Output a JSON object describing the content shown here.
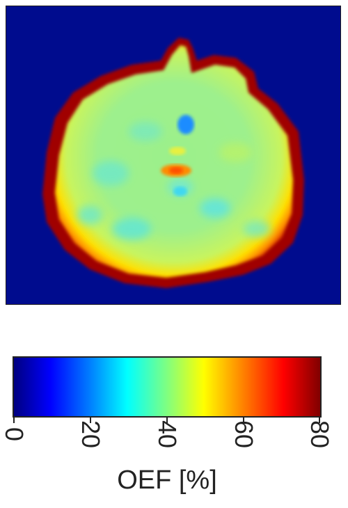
{
  "colors": {
    "background": "#000c8e",
    "colormap": [
      "#000080",
      "#0000ff",
      "#0080ff",
      "#00ffff",
      "#80ff80",
      "#ffff00",
      "#ff8000",
      "#ff0000",
      "#800000"
    ]
  },
  "image": {
    "description_icon": "oef-brain-map-icon"
  },
  "colorbar": {
    "ticks": [
      "0",
      "20",
      "40",
      "60",
      "80"
    ],
    "min": 0,
    "max": 80,
    "label": "OEF [%]"
  }
}
